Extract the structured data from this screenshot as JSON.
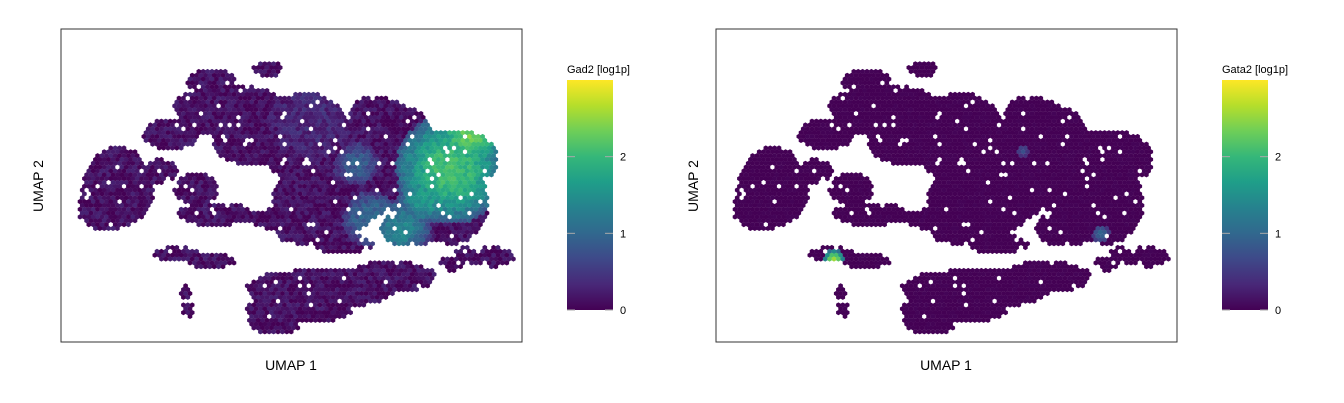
{
  "chart_data": [
    {
      "type": "heatmap",
      "subtype": "umap-hexbin",
      "xlabel": "UMAP 1",
      "ylabel": "UMAP 2",
      "colorbar_title": "Gad2 [log1p]",
      "colorbar_ticks": [
        0,
        1,
        2
      ],
      "colorbar_range": [
        0,
        3
      ],
      "colormap": "viridis",
      "high_expression_regions": [
        {
          "region": "right cluster",
          "level": 2.1
        },
        {
          "region": "top small cluster",
          "level": 1.5
        },
        {
          "region": "central band",
          "level": 0.5
        }
      ]
    },
    {
      "type": "heatmap",
      "subtype": "umap-hexbin",
      "xlabel": "UMAP 1",
      "ylabel": "UMAP 2",
      "colorbar_title": "Gata2 [log1p]",
      "colorbar_ticks": [
        0,
        1,
        2
      ],
      "colorbar_range": [
        0,
        3
      ],
      "colormap": "viridis",
      "high_expression_regions": [
        {
          "region": "top small cluster",
          "level": 0.8
        },
        {
          "region": "right small cluster",
          "level": 0.9
        },
        {
          "region": "lower left strip",
          "level": 2.5
        }
      ]
    }
  ],
  "colors": {
    "viridis": [
      "#440154",
      "#482878",
      "#3e4989",
      "#31688e",
      "#26828e",
      "#1f9e89",
      "#35b779",
      "#6ece58",
      "#b5de2b",
      "#fde725"
    ],
    "frame": "#333333",
    "tick": "#aaaaaa"
  }
}
